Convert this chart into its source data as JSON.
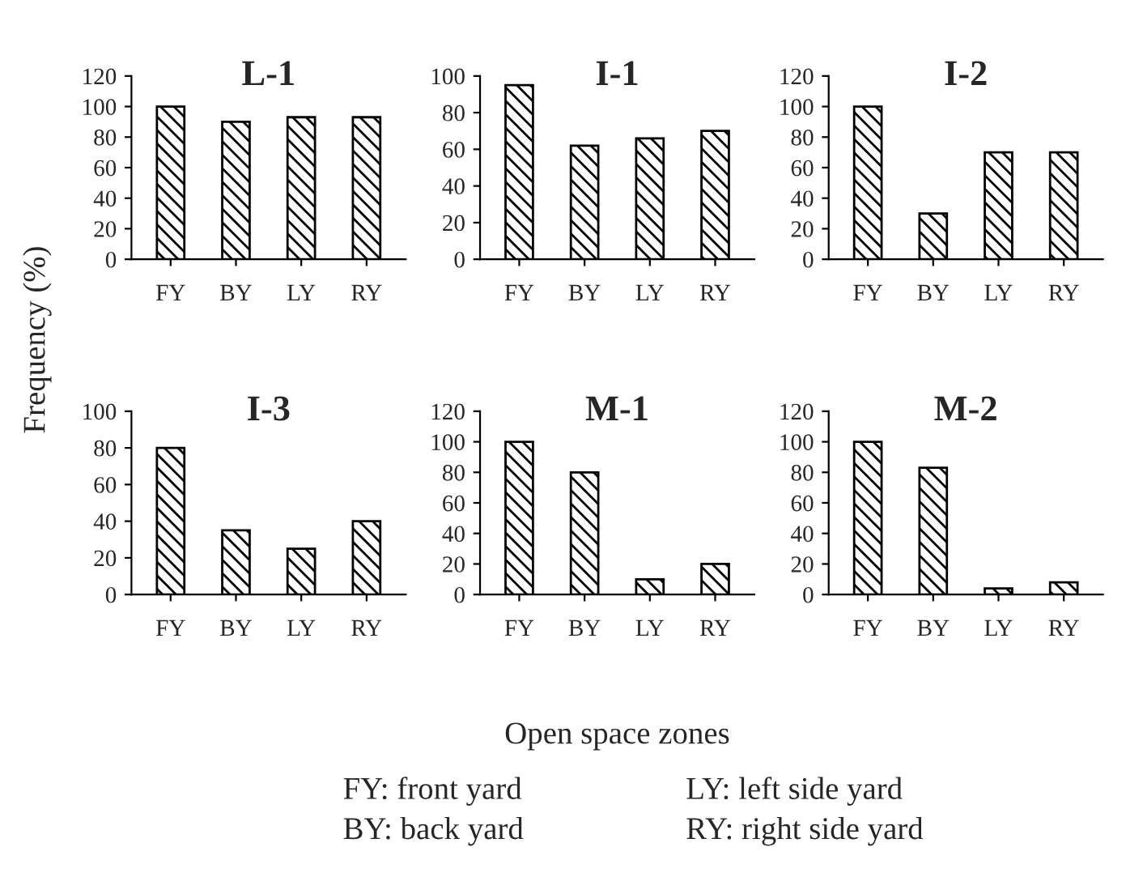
{
  "chart_data": [
    {
      "type": "bar",
      "title": "L-1",
      "ylabel": "Frequency (%)",
      "categories": [
        "FY",
        "BY",
        "LY",
        "RY"
      ],
      "values": [
        100,
        90,
        93,
        93
      ],
      "ylim": [
        0,
        120
      ],
      "yticks": [
        0,
        20,
        40,
        60,
        80,
        100,
        120
      ],
      "grid": false
    },
    {
      "type": "bar",
      "title": "I-1",
      "categories": [
        "FY",
        "BY",
        "LY",
        "RY"
      ],
      "values": [
        95,
        62,
        66,
        70
      ],
      "ylim": [
        0,
        100
      ],
      "yticks": [
        0,
        20,
        40,
        60,
        80,
        100
      ],
      "grid": false
    },
    {
      "type": "bar",
      "title": "I-2",
      "categories": [
        "FY",
        "BY",
        "LY",
        "RY"
      ],
      "values": [
        100,
        30,
        70,
        70
      ],
      "ylim": [
        0,
        120
      ],
      "yticks": [
        0,
        20,
        40,
        60,
        80,
        100,
        120
      ],
      "grid": false
    },
    {
      "type": "bar",
      "title": "I-3",
      "categories": [
        "FY",
        "BY",
        "LY",
        "RY"
      ],
      "values": [
        80,
        35,
        25,
        40
      ],
      "ylim": [
        0,
        100
      ],
      "yticks": [
        0,
        20,
        40,
        60,
        80,
        100
      ],
      "grid": false
    },
    {
      "type": "bar",
      "title": "M-1",
      "xlabel": "Open space zones",
      "categories": [
        "FY",
        "BY",
        "LY",
        "RY"
      ],
      "values": [
        100,
        80,
        10,
        20
      ],
      "ylim": [
        0,
        120
      ],
      "yticks": [
        0,
        20,
        40,
        60,
        80,
        100,
        120
      ],
      "grid": false,
      "annotations": [
        "FY: front yard",
        "BY: back yard",
        "LY: left side yard",
        "RY: right side yard"
      ]
    },
    {
      "type": "bar",
      "title": "M-2",
      "categories": [
        "FY",
        "BY",
        "LY",
        "RY"
      ],
      "values": [
        100,
        83,
        4,
        8
      ],
      "ylim": [
        0,
        120
      ],
      "yticks": [
        0,
        20,
        40,
        60,
        80,
        100,
        120
      ],
      "grid": false
    }
  ]
}
